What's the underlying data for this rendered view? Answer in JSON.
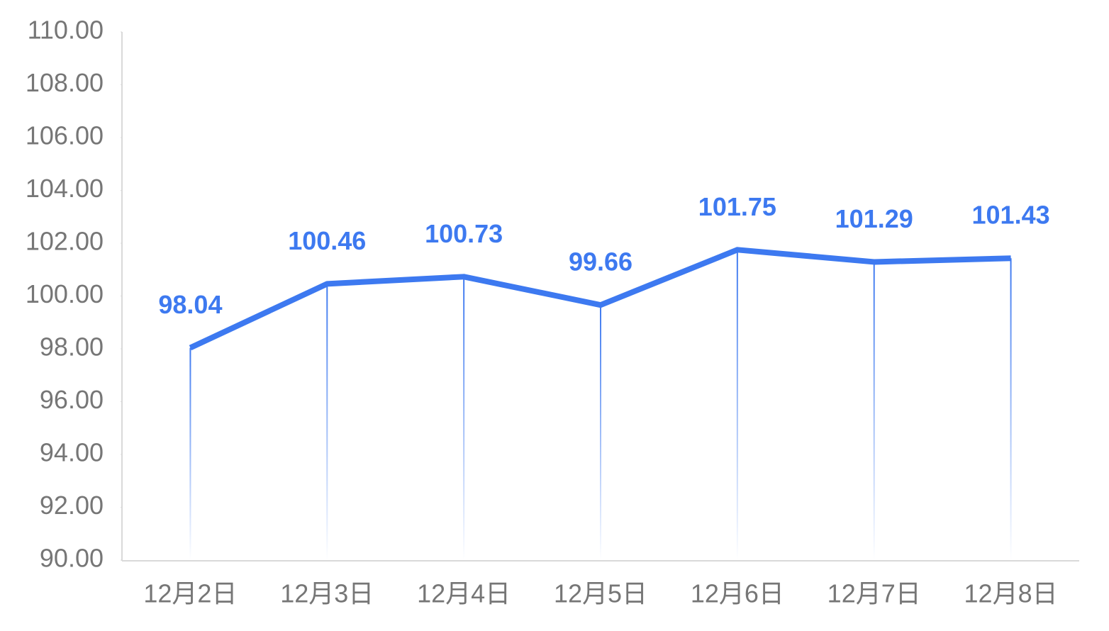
{
  "chart_data": {
    "type": "line",
    "categories": [
      "12月2日",
      "12月3日",
      "12月4日",
      "12月5日",
      "12月6日",
      "12月7日",
      "12月8日"
    ],
    "values": [
      98.04,
      100.46,
      100.73,
      99.66,
      101.75,
      101.29,
      101.43
    ],
    "color": "#3d79f0",
    "ylim": [
      90,
      110
    ],
    "yticks": [
      {
        "value": 90,
        "label": "90.00"
      },
      {
        "value": 92,
        "label": "92.00"
      },
      {
        "value": 94,
        "label": "94.00"
      },
      {
        "value": 96,
        "label": "96.00"
      },
      {
        "value": 98,
        "label": "98.00"
      },
      {
        "value": 100,
        "label": "100.00"
      },
      {
        "value": 102,
        "label": "102.00"
      },
      {
        "value": 104,
        "label": "104.00"
      },
      {
        "value": 106,
        "label": "106.00"
      },
      {
        "value": 108,
        "label": "108.00"
      },
      {
        "value": 110,
        "label": "110.00"
      }
    ],
    "grid": false
  }
}
